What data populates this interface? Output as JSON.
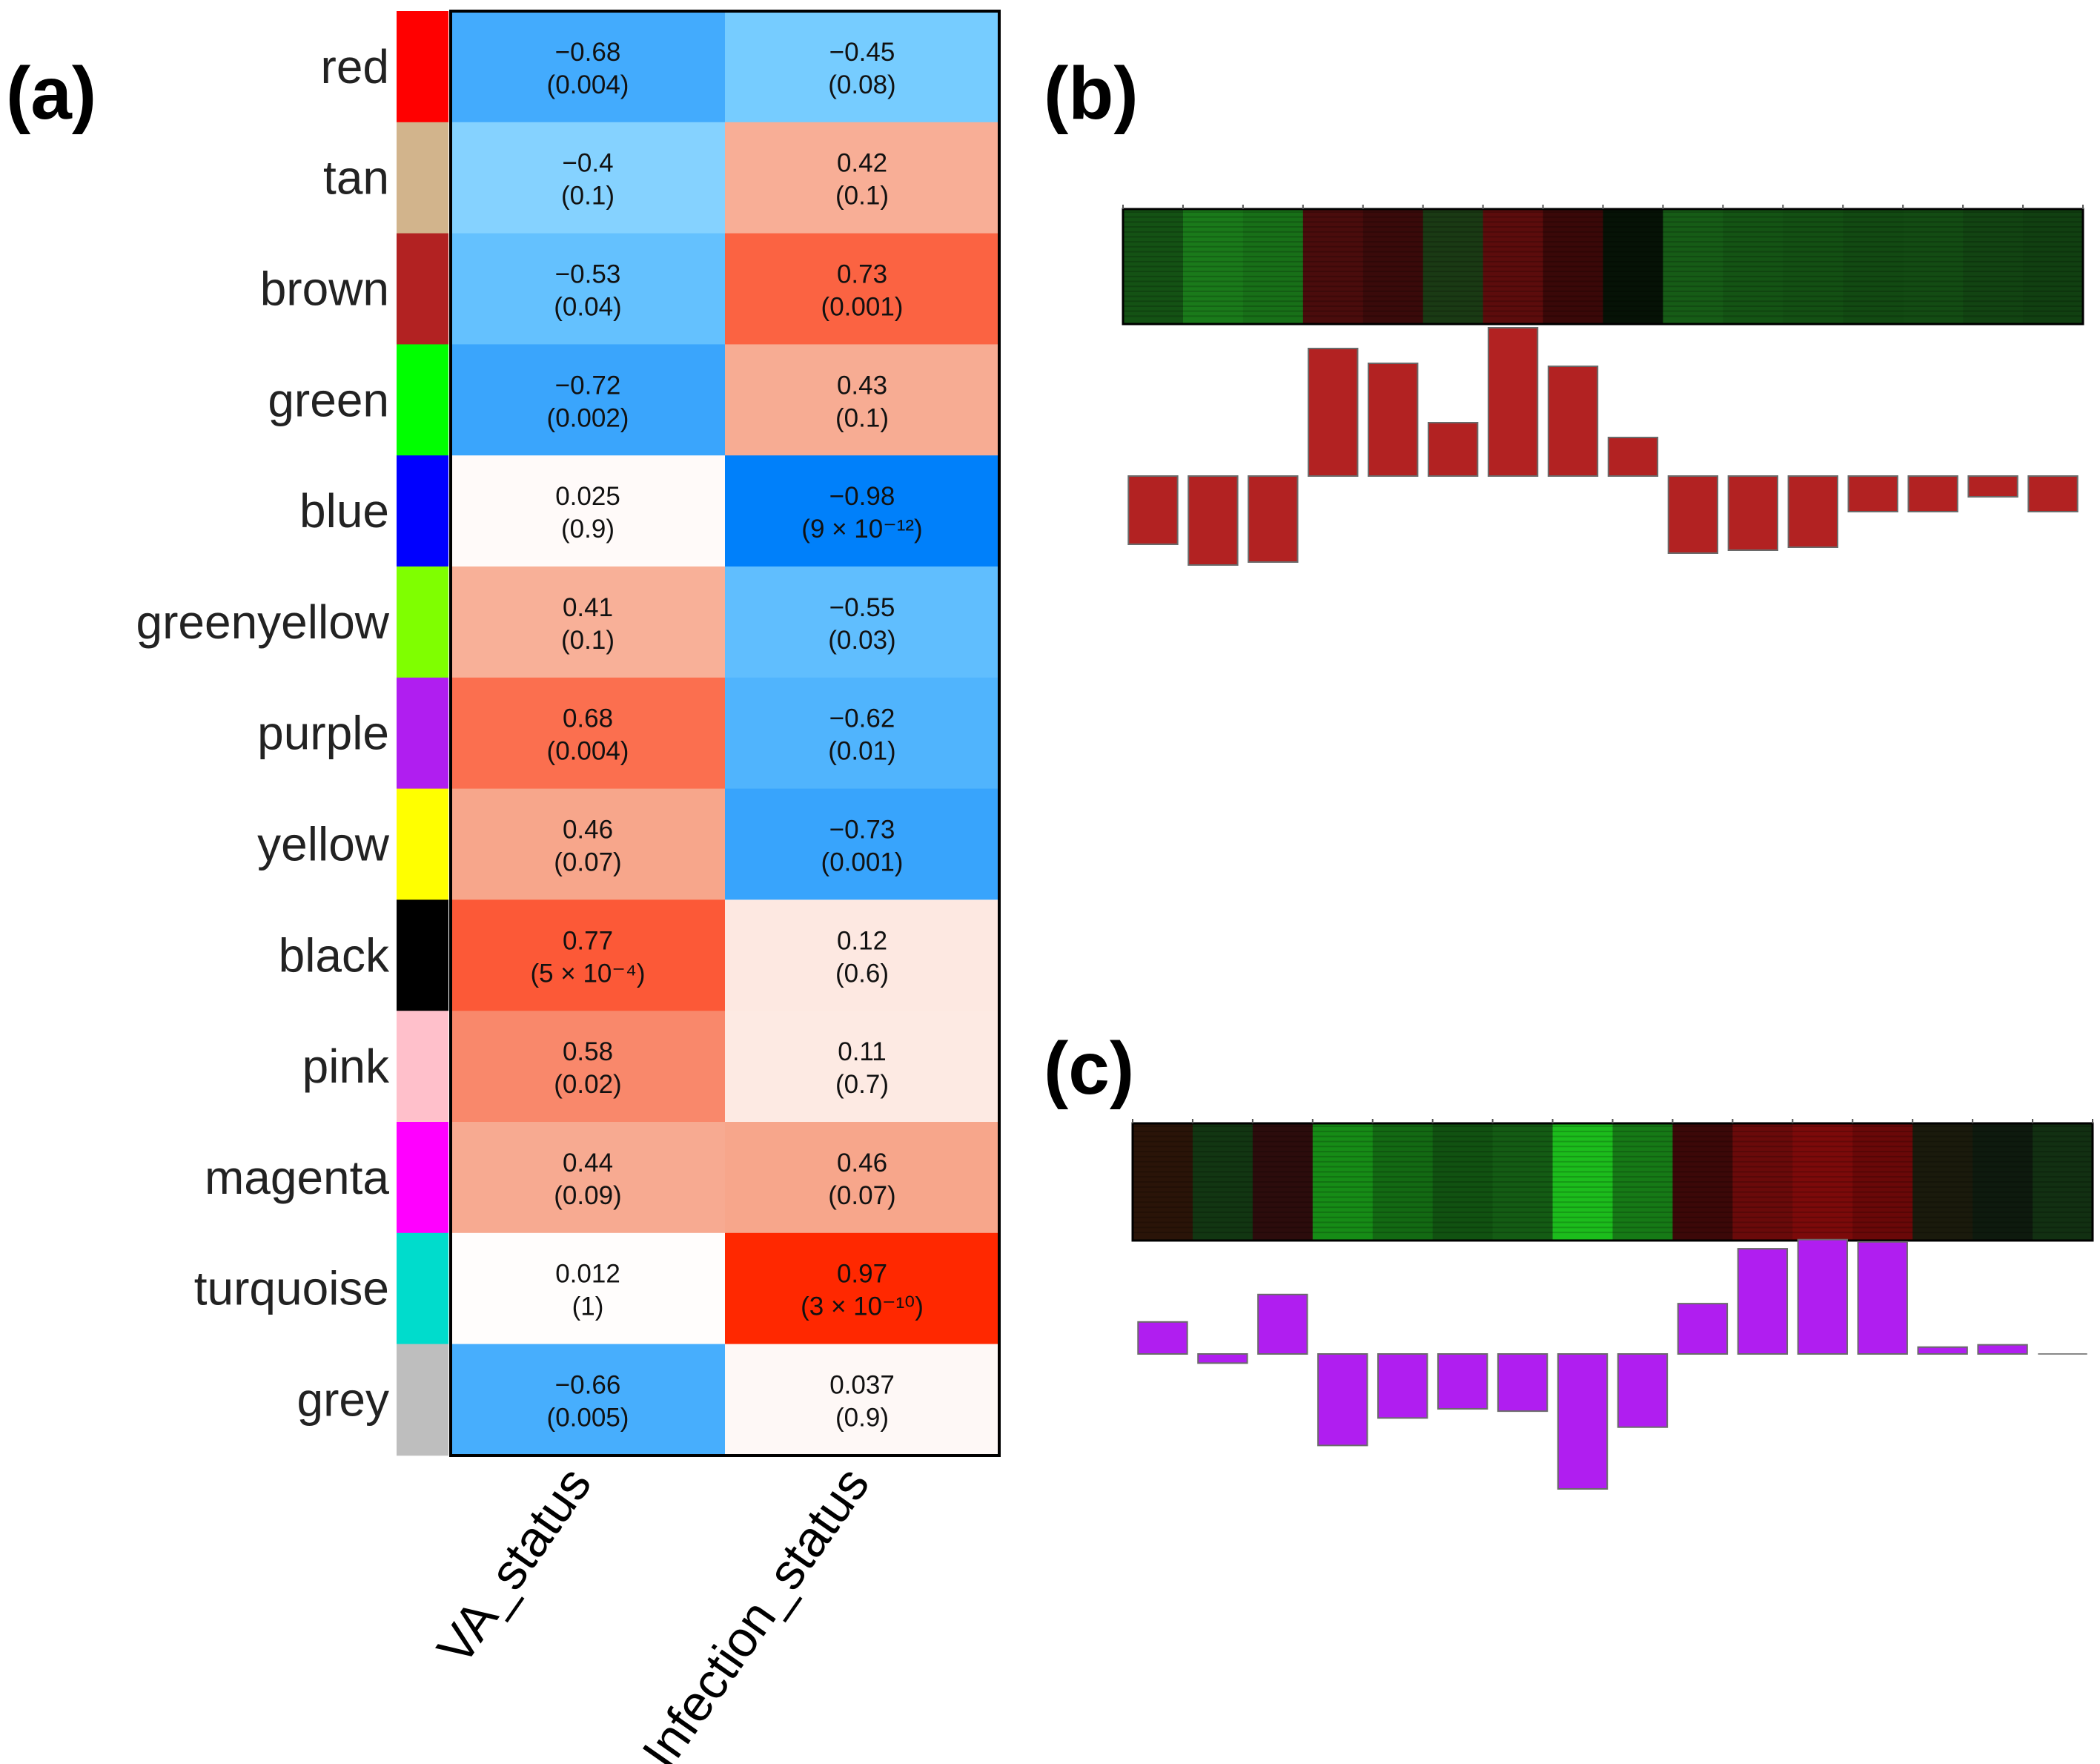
{
  "panels": {
    "a": "(a)",
    "b": "(b)",
    "c": "(c)"
  },
  "chart_data": [
    {
      "type": "heatmap",
      "panel": "(a)",
      "title": "",
      "columns": [
        "VA_status",
        "Infection_status"
      ],
      "rows": [
        {
          "module": "red",
          "color": "#ff0000",
          "cells": [
            {
              "r": -0.68,
              "label": "−0.68",
              "p": "(0.004)"
            },
            {
              "r": -0.45,
              "label": "−0.45",
              "p": "(0.08)"
            }
          ]
        },
        {
          "module": "tan",
          "color": "#d2b48c",
          "cells": [
            {
              "r": -0.4,
              "label": "−0.4",
              "p": "(0.1)"
            },
            {
              "r": 0.42,
              "label": "0.42",
              "p": "(0.1)"
            }
          ]
        },
        {
          "module": "brown",
          "color": "#b22222",
          "cells": [
            {
              "r": -0.53,
              "label": "−0.53",
              "p": "(0.04)"
            },
            {
              "r": 0.73,
              "label": "0.73",
              "p": "(0.001)"
            }
          ]
        },
        {
          "module": "green",
          "color": "#00ff00",
          "cells": [
            {
              "r": -0.72,
              "label": "−0.72",
              "p": "(0.002)"
            },
            {
              "r": 0.43,
              "label": "0.43",
              "p": "(0.1)"
            }
          ]
        },
        {
          "module": "blue",
          "color": "#0000ff",
          "cells": [
            {
              "r": 0.025,
              "label": "0.025",
              "p": "(0.9)"
            },
            {
              "r": -0.98,
              "label": "−0.98",
              "p": "(9 × 10⁻¹²)"
            }
          ]
        },
        {
          "module": "greenyellow",
          "color": "#7fff00",
          "cells": [
            {
              "r": 0.41,
              "label": "0.41",
              "p": "(0.1)"
            },
            {
              "r": -0.55,
              "label": "−0.55",
              "p": "(0.03)"
            }
          ]
        },
        {
          "module": "purple",
          "color": "#b01ef0",
          "cells": [
            {
              "r": 0.68,
              "label": "0.68",
              "p": "(0.004)"
            },
            {
              "r": -0.62,
              "label": "−0.62",
              "p": "(0.01)"
            }
          ]
        },
        {
          "module": "yellow",
          "color": "#ffff00",
          "cells": [
            {
              "r": 0.46,
              "label": "0.46",
              "p": "(0.07)"
            },
            {
              "r": -0.73,
              "label": "−0.73",
              "p": "(0.001)"
            }
          ]
        },
        {
          "module": "black",
          "color": "#000000",
          "cells": [
            {
              "r": 0.77,
              "label": "0.77",
              "p": "(5 × 10⁻⁴)"
            },
            {
              "r": 0.12,
              "label": "0.12",
              "p": "(0.6)"
            }
          ]
        },
        {
          "module": "pink",
          "color": "#ffc0cb",
          "cells": [
            {
              "r": 0.58,
              "label": "0.58",
              "p": "(0.02)"
            },
            {
              "r": 0.11,
              "label": "0.11",
              "p": "(0.7)"
            }
          ]
        },
        {
          "module": "magenta",
          "color": "#ff00ff",
          "cells": [
            {
              "r": 0.44,
              "label": "0.44",
              "p": "(0.09)"
            },
            {
              "r": 0.46,
              "label": "0.46",
              "p": "(0.07)"
            }
          ]
        },
        {
          "module": "turquoise",
          "color": "#00dccc",
          "cells": [
            {
              "r": 0.012,
              "label": "0.012",
              "p": "(1)"
            },
            {
              "r": 0.97,
              "label": "0.97",
              "p": "(3 × 10⁻¹⁰)"
            }
          ]
        },
        {
          "module": "grey",
          "color": "#bebebe",
          "cells": [
            {
              "r": -0.66,
              "label": "−0.66",
              "p": "(0.005)"
            },
            {
              "r": 0.037,
              "label": "0.037",
              "p": "(0.9)"
            }
          ]
        }
      ]
    },
    {
      "type": "bar",
      "panel": "(b)",
      "module": "brown",
      "bar_color": "#b22222",
      "values": [
        -0.23,
        -0.3,
        -0.29,
        0.43,
        0.38,
        0.18,
        0.5,
        0.37,
        0.13,
        -0.26,
        -0.25,
        -0.24,
        -0.12,
        -0.12,
        -0.07,
        -0.12
      ],
      "heatmap_columns": [
        "#145214",
        "#1a7a1a",
        "#187018",
        "#4a0c0c",
        "#3a0a0a",
        "#1a3a14",
        "#5c0c0c",
        "#3a0808",
        "#061206",
        "#165c16",
        "#145414",
        "#135013",
        "#124a12",
        "#134c13",
        "#124412",
        "#114011"
      ]
    },
    {
      "type": "bar",
      "panel": "(c)",
      "module": "purple",
      "bar_color": "#b01ef0",
      "values": [
        0.14,
        -0.04,
        0.26,
        -0.4,
        -0.28,
        -0.24,
        -0.25,
        -0.59,
        -0.32,
        0.22,
        0.46,
        0.5,
        0.49,
        0.03,
        0.04,
        0.0
      ],
      "heatmap_columns": [
        "#2a1408",
        "#123612",
        "#2c0c0c",
        "#168c16",
        "#136a13",
        "#115211",
        "#145c14",
        "#1cbc1c",
        "#167a16",
        "#3c0808",
        "#6a0a0a",
        "#7c0a0a",
        "#6a0808",
        "#1a1a0c",
        "#0e1a0e",
        "#123012"
      ]
    }
  ]
}
